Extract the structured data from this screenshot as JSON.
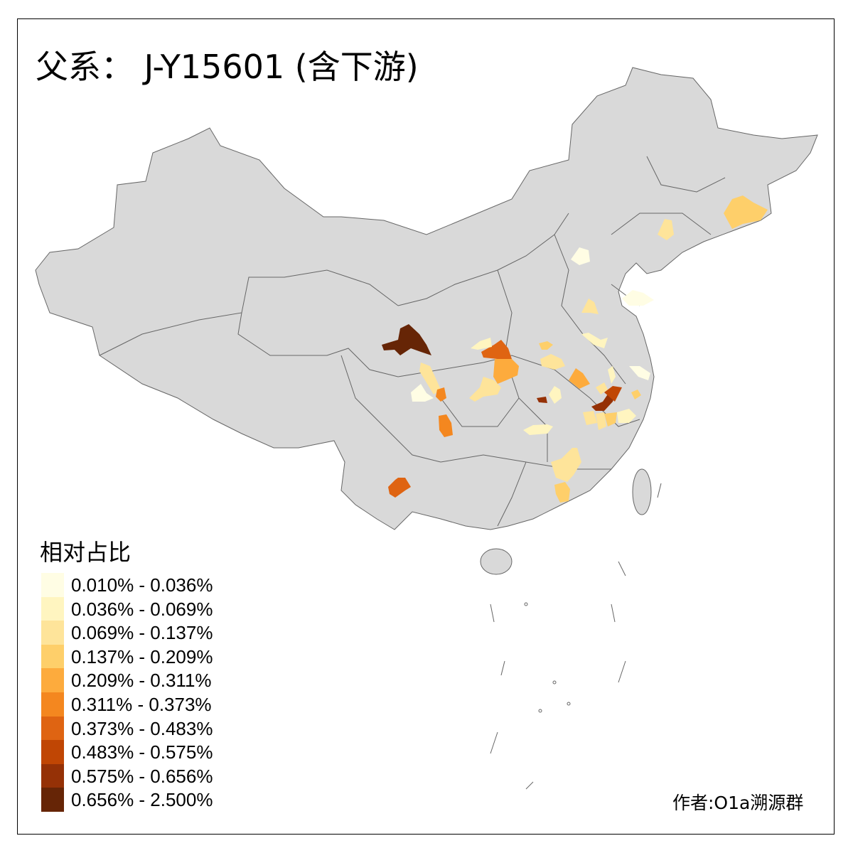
{
  "title": "父系： J-Y15601 (含下游)",
  "legend": {
    "title": "相对占比",
    "items": [
      {
        "label": "0.010% - 0.036%",
        "color": "#FFFDE4"
      },
      {
        "label": "0.036% - 0.069%",
        "color": "#FFF5C0"
      },
      {
        "label": "0.069% - 0.137%",
        "color": "#FEE49A"
      },
      {
        "label": "0.137% - 0.209%",
        "color": "#FECF6A"
      },
      {
        "label": "0.209% - 0.311%",
        "color": "#FDAB3D"
      },
      {
        "label": "0.311% - 0.373%",
        "color": "#F4871F"
      },
      {
        "label": "0.373% - 0.483%",
        "color": "#DF6412"
      },
      {
        "label": "0.483% - 0.575%",
        "color": "#C04604"
      },
      {
        "label": "0.575% - 0.656%",
        "color": "#953106"
      },
      {
        "label": "0.656% - 2.500%",
        "color": "#662506"
      }
    ]
  },
  "credit": "作者:O1a溯源群",
  "colors": {
    "base_region": "#D9D9D9",
    "border": "#666666",
    "no_data": "#D9D9D9"
  }
}
